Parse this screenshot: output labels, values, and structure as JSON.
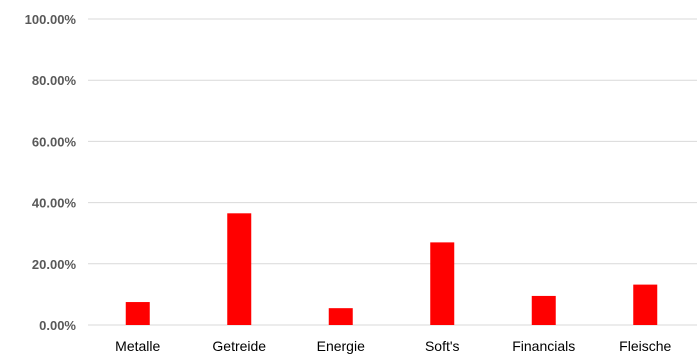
{
  "chart_data": {
    "type": "bar",
    "categories": [
      "Metalle",
      "Getreide",
      "Energie",
      "Soft's",
      "Financials",
      "Fleische"
    ],
    "series": [
      {
        "values": [
          7.5,
          36.5,
          5.5,
          27.0,
          9.5,
          13.2
        ],
        "color": "#ff0000"
      }
    ],
    "ylim": [
      0,
      100
    ],
    "yticks": [
      0,
      20,
      40,
      60,
      80,
      100
    ],
    "ytick_labels": [
      "0.00%",
      "20.00%",
      "40.00%",
      "60.00%",
      "80.00%",
      "100.00%"
    ],
    "grid": true,
    "legend": "none"
  }
}
